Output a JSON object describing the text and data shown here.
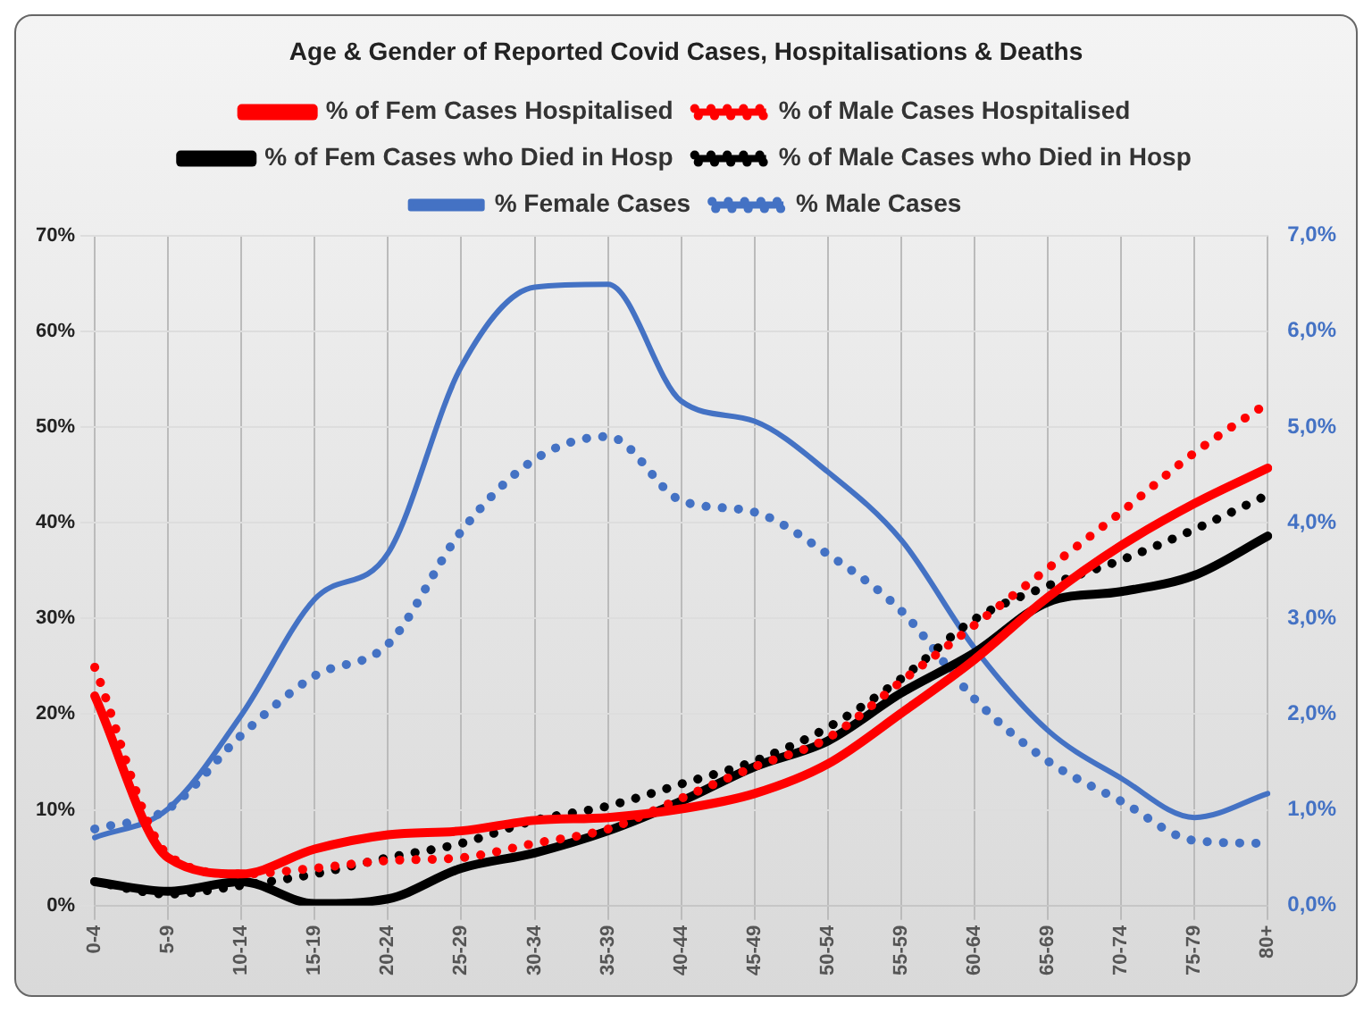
{
  "chart_data": {
    "type": "line",
    "title": "Age & Gender of Reported Covid Cases, Hospitalisations & Deaths",
    "categories": [
      "0-4",
      "5-9",
      "10-14",
      "15-19",
      "20-24",
      "25-29",
      "30-34",
      "35-39",
      "40-44",
      "45-49",
      "50-54",
      "55-59",
      "60-64",
      "65-69",
      "70-74",
      "75-79",
      "80+"
    ],
    "series": [
      {
        "name": "% of Fem Cases Hospitalised",
        "color": "#ff0000",
        "line_style": "solid",
        "values": [
          21.9,
          5,
          3.3,
          5.9,
          7.4,
          7.8,
          8.9,
          9.2,
          10.1,
          11.7,
          14.8,
          20.1,
          25.7,
          32.2,
          37.6,
          42,
          45.7
        ]
      },
      {
        "name": "% of Male Cases Hospitalised",
        "color": "#ff0000",
        "line_style": "dotted",
        "values": [
          24.9,
          5.3,
          3.3,
          3.9,
          4.7,
          5,
          6.5,
          8,
          11.2,
          14.5,
          17.5,
          23.4,
          29.3,
          35.2,
          41.1,
          47.3,
          52.5
        ]
      },
      {
        "name": "% of Fem Cases who Died in Hosp",
        "color": "#000000",
        "line_style": "solid",
        "values": [
          2.5,
          1.5,
          2.5,
          0.2,
          0.7,
          3.9,
          5.5,
          7.8,
          10.9,
          14.5,
          17.2,
          22.2,
          26.4,
          31.7,
          32.8,
          34.5,
          38.6
        ]
      },
      {
        "name": "% of Male Cases who Died in Hosp",
        "color": "#000000",
        "line_style": "dotted",
        "values": [
          2.5,
          1.2,
          2.1,
          3.3,
          5,
          6.5,
          8.9,
          10.4,
          12.7,
          15.1,
          18.6,
          23.7,
          29.9,
          33.4,
          36.1,
          39.3,
          42.9
        ]
      },
      {
        "name": "% Female Cases",
        "color": "#4472c4",
        "line_style": "solid",
        "axis": "y2",
        "values": [
          0.71,
          1.01,
          1.99,
          3.2,
          3.68,
          5.63,
          6.46,
          6.49,
          5.27,
          5.06,
          4.53,
          3.82,
          2.69,
          1.83,
          1.33,
          0.92,
          1.17
        ]
      },
      {
        "name": "% Male Cases",
        "color": "#4472c4",
        "line_style": "dotted",
        "axis": "y2",
        "values": [
          0.8,
          1.01,
          1.78,
          2.4,
          2.73,
          3.91,
          4.66,
          4.9,
          4.23,
          4.11,
          3.67,
          3.08,
          2.16,
          1.51,
          1.09,
          0.68,
          0.65
        ]
      }
    ],
    "ylim": [
      0,
      70
    ],
    "yticks": [
      {
        "value": 0,
        "label": "0%"
      },
      {
        "value": 10,
        "label": "10%"
      },
      {
        "value": 20,
        "label": "20%"
      },
      {
        "value": 30,
        "label": "30%"
      },
      {
        "value": 40,
        "label": "40%"
      },
      {
        "value": 50,
        "label": "50%"
      },
      {
        "value": 60,
        "label": "60%"
      },
      {
        "value": 70,
        "label": "70%"
      }
    ],
    "y2lim": [
      0,
      7
    ],
    "y2ticks": [
      {
        "value": 0,
        "label": "0,0%"
      },
      {
        "value": 1,
        "label": "1,0%"
      },
      {
        "value": 2,
        "label": "2,0%"
      },
      {
        "value": 3,
        "label": "3,0%"
      },
      {
        "value": 4,
        "label": "4,0%"
      },
      {
        "value": 5,
        "label": "5,0%"
      },
      {
        "value": 6,
        "label": "6,0%"
      },
      {
        "value": 7,
        "label": "7,0%"
      }
    ],
    "grid": true,
    "legend": "top",
    "marker": "none"
  }
}
